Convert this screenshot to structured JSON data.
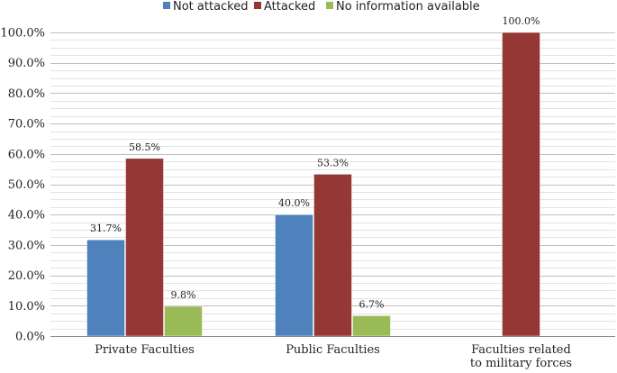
{
  "chart_data": {
    "type": "bar",
    "categories": [
      [
        "Private Faculties"
      ],
      [
        "Public Faculties"
      ],
      [
        "Faculties related",
        "to military forces"
      ]
    ],
    "series": [
      {
        "name": "Not attacked",
        "color": "#4f81bd",
        "values": [
          31.7,
          40.0,
          null
        ],
        "labels": [
          "31.7%",
          "40.0%",
          ""
        ]
      },
      {
        "name": "Attacked",
        "color": "#953735",
        "values": [
          58.5,
          53.3,
          100.0
        ],
        "labels": [
          "58.5%",
          "53.3%",
          "100.0%"
        ]
      },
      {
        "name": "No information available",
        "color": "#9bbb59",
        "values": [
          9.8,
          6.7,
          null
        ],
        "labels": [
          "9.8%",
          "6.7%",
          ""
        ]
      }
    ],
    "ylim": [
      0,
      100
    ],
    "yticks": [
      {
        "value": 0,
        "label": "0.0%"
      },
      {
        "value": 10,
        "label": "10.0%"
      },
      {
        "value": 20,
        "label": "20.0%"
      },
      {
        "value": 30,
        "label": "30.0%"
      },
      {
        "value": 40,
        "label": "40.0%"
      },
      {
        "value": 50,
        "label": "50.0%"
      },
      {
        "value": 60,
        "label": "60.0%"
      },
      {
        "value": 70,
        "label": "70.0%"
      },
      {
        "value": 80,
        "label": "80.0%"
      },
      {
        "value": 90,
        "label": "90.0%"
      },
      {
        "value": 100,
        "label": "100.0%"
      }
    ],
    "minor_grid_step": 2.5,
    "grid": true,
    "legend": "top-center",
    "title": "",
    "xlabel": "",
    "ylabel": ""
  }
}
